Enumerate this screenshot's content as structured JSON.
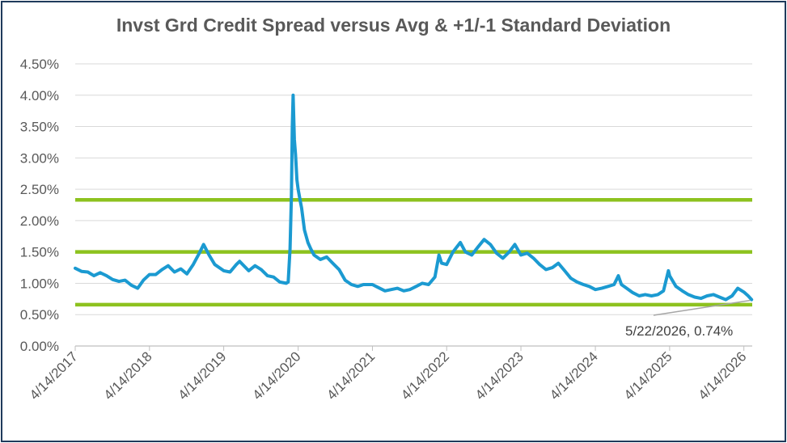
{
  "chart_data": {
    "type": "line",
    "title": "Invst Grd Credit Spread versus Avg & +1/-1 Standard Deviation",
    "xlabel": "",
    "ylabel": "",
    "ylim": [
      0,
      4.5
    ],
    "yticks": [
      "0.00%",
      "0.50%",
      "1.00%",
      "1.50%",
      "2.00%",
      "2.50%",
      "3.00%",
      "3.50%",
      "4.00%",
      "4.50%"
    ],
    "xticks": [
      "4/14/2017",
      "4/14/2018",
      "4/14/2019",
      "4/14/2020",
      "4/14/2021",
      "4/14/2022",
      "4/14/2023",
      "4/14/2024",
      "4/14/2025",
      "4/14/2026"
    ],
    "grid": "horizontal",
    "colors": {
      "series": "#1b9ad1",
      "bands": "#8dc21f",
      "grid": "#d9d9d9",
      "border": "#1f3b5c"
    },
    "series": [
      {
        "values": [
          [
            "2017-04-14",
            1.24
          ],
          [
            "2017-05-15",
            1.19
          ],
          [
            "2017-06-15",
            1.18
          ],
          [
            "2017-07-15",
            1.12
          ],
          [
            "2017-08-15",
            1.17
          ],
          [
            "2017-09-15",
            1.12
          ],
          [
            "2017-10-15",
            1.06
          ],
          [
            "2017-11-15",
            1.03
          ],
          [
            "2017-12-15",
            1.05
          ],
          [
            "2018-01-15",
            0.97
          ],
          [
            "2018-02-15",
            0.92
          ],
          [
            "2018-03-15",
            1.05
          ],
          [
            "2018-04-14",
            1.14
          ],
          [
            "2018-05-15",
            1.14
          ],
          [
            "2018-06-15",
            1.22
          ],
          [
            "2018-07-15",
            1.28
          ],
          [
            "2018-08-15",
            1.18
          ],
          [
            "2018-09-15",
            1.23
          ],
          [
            "2018-10-15",
            1.15
          ],
          [
            "2018-11-15",
            1.3
          ],
          [
            "2018-12-15",
            1.48
          ],
          [
            "2019-01-05",
            1.62
          ],
          [
            "2019-02-01",
            1.45
          ],
          [
            "2019-03-01",
            1.3
          ],
          [
            "2019-04-14",
            1.2
          ],
          [
            "2019-05-15",
            1.18
          ],
          [
            "2019-06-15",
            1.3
          ],
          [
            "2019-07-01",
            1.35
          ],
          [
            "2019-08-15",
            1.2
          ],
          [
            "2019-09-15",
            1.28
          ],
          [
            "2019-10-15",
            1.22
          ],
          [
            "2019-11-15",
            1.12
          ],
          [
            "2019-12-15",
            1.1
          ],
          [
            "2020-01-15",
            1.02
          ],
          [
            "2020-02-15",
            1.0
          ],
          [
            "2020-02-25",
            1.02
          ],
          [
            "2020-03-05",
            1.55
          ],
          [
            "2020-03-12",
            2.4
          ],
          [
            "2020-03-16",
            3.5
          ],
          [
            "2020-03-20",
            4.0
          ],
          [
            "2020-03-26",
            3.3
          ],
          [
            "2020-04-01",
            3.05
          ],
          [
            "2020-04-08",
            2.65
          ],
          [
            "2020-04-14",
            2.5
          ],
          [
            "2020-04-25",
            2.3
          ],
          [
            "2020-05-01",
            2.2
          ],
          [
            "2020-05-15",
            1.85
          ],
          [
            "2020-06-01",
            1.65
          ],
          [
            "2020-06-15",
            1.55
          ],
          [
            "2020-07-01",
            1.45
          ],
          [
            "2020-08-01",
            1.38
          ],
          [
            "2020-09-01",
            1.42
          ],
          [
            "2020-10-01",
            1.32
          ],
          [
            "2020-11-01",
            1.22
          ],
          [
            "2020-12-01",
            1.05
          ],
          [
            "2021-01-01",
            0.98
          ],
          [
            "2021-02-01",
            0.95
          ],
          [
            "2021-03-01",
            0.98
          ],
          [
            "2021-04-14",
            0.98
          ],
          [
            "2021-05-15",
            0.93
          ],
          [
            "2021-06-15",
            0.88
          ],
          [
            "2021-07-15",
            0.9
          ],
          [
            "2021-08-15",
            0.92
          ],
          [
            "2021-09-15",
            0.88
          ],
          [
            "2021-10-15",
            0.9
          ],
          [
            "2021-11-15",
            0.95
          ],
          [
            "2021-12-15",
            1.0
          ],
          [
            "2022-01-15",
            0.98
          ],
          [
            "2022-02-15",
            1.1
          ],
          [
            "2022-03-07",
            1.45
          ],
          [
            "2022-03-20",
            1.32
          ],
          [
            "2022-04-14",
            1.3
          ],
          [
            "2022-05-15",
            1.5
          ],
          [
            "2022-06-20",
            1.65
          ],
          [
            "2022-07-15",
            1.5
          ],
          [
            "2022-08-15",
            1.45
          ],
          [
            "2022-09-15",
            1.58
          ],
          [
            "2022-10-15",
            1.7
          ],
          [
            "2022-11-15",
            1.62
          ],
          [
            "2022-12-15",
            1.48
          ],
          [
            "2023-01-15",
            1.4
          ],
          [
            "2023-02-15",
            1.5
          ],
          [
            "2023-03-15",
            1.62
          ],
          [
            "2023-04-14",
            1.45
          ],
          [
            "2023-05-15",
            1.48
          ],
          [
            "2023-06-15",
            1.4
          ],
          [
            "2023-07-15",
            1.3
          ],
          [
            "2023-08-15",
            1.22
          ],
          [
            "2023-09-15",
            1.25
          ],
          [
            "2023-10-15",
            1.32
          ],
          [
            "2023-11-15",
            1.2
          ],
          [
            "2023-12-15",
            1.08
          ],
          [
            "2024-01-15",
            1.02
          ],
          [
            "2024-02-15",
            0.98
          ],
          [
            "2024-03-15",
            0.95
          ],
          [
            "2024-04-14",
            0.9
          ],
          [
            "2024-05-15",
            0.92
          ],
          [
            "2024-06-15",
            0.95
          ],
          [
            "2024-07-15",
            0.98
          ],
          [
            "2024-08-05",
            1.12
          ],
          [
            "2024-08-20",
            0.98
          ],
          [
            "2024-09-15",
            0.92
          ],
          [
            "2024-10-15",
            0.85
          ],
          [
            "2024-11-15",
            0.8
          ],
          [
            "2024-12-15",
            0.82
          ],
          [
            "2025-01-15",
            0.8
          ],
          [
            "2025-02-15",
            0.82
          ],
          [
            "2025-03-15",
            0.88
          ],
          [
            "2025-04-08",
            1.2
          ],
          [
            "2025-04-14",
            1.12
          ],
          [
            "2025-05-15",
            0.95
          ],
          [
            "2025-06-15",
            0.88
          ],
          [
            "2025-07-15",
            0.82
          ],
          [
            "2025-08-15",
            0.78
          ],
          [
            "2025-09-15",
            0.76
          ],
          [
            "2025-10-15",
            0.8
          ],
          [
            "2025-11-15",
            0.82
          ],
          [
            "2025-12-15",
            0.78
          ],
          [
            "2026-01-15",
            0.74
          ],
          [
            "2026-02-15",
            0.8
          ],
          [
            "2026-03-15",
            0.92
          ],
          [
            "2026-04-14",
            0.86
          ],
          [
            "2026-05-05",
            0.8
          ],
          [
            "2026-05-22",
            0.74
          ]
        ]
      }
    ],
    "reference_lines": [
      {
        "label": "+1 Standard Deviation",
        "y": 2.33
      },
      {
        "label": "Avg",
        "y": 1.5
      },
      {
        "label": "-1 Standard Deviation",
        "y": 0.66
      }
    ],
    "annotation": {
      "text": "5/22/2026, 0.74%",
      "x": "2026-05-22",
      "y": 0.74
    }
  }
}
